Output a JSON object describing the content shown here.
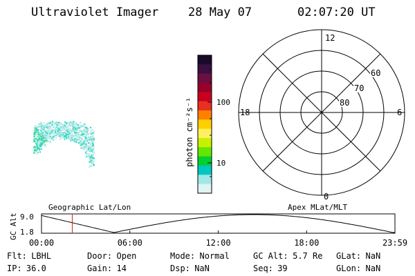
{
  "header": {
    "instrument": "Ultraviolet Imager",
    "date": "28 May 07",
    "time": "02:07:20 UT"
  },
  "colorbar": {
    "label": "photon cm⁻²s⁻¹",
    "ticks": [
      "100",
      "10"
    ],
    "colors": [
      "#1a0a2a",
      "#3a1040",
      "#6a1040",
      "#98002a",
      "#c80020",
      "#e83020",
      "#ff8000",
      "#ffd000",
      "#fff060",
      "#c8f000",
      "#60e800",
      "#00d030",
      "#00c8c0",
      "#a0e8e8",
      "#e0f4f4"
    ]
  },
  "polar_grid": {
    "mlt_labels": {
      "top": "12",
      "left": "18",
      "right": "6",
      "bottom": "0"
    },
    "lat_labels": [
      "60",
      "70",
      "80"
    ]
  },
  "altitude_plot": {
    "ylabel": "GC Alt",
    "yticks": [
      "9.0",
      "1.8"
    ],
    "left_title": "Geographic Lat/Lon",
    "right_title": "Apex MLat/MLT",
    "xticks": [
      "00:00",
      "06:00",
      "12:00",
      "18:00",
      "23:59"
    ],
    "current_time_fraction": 0.087
  },
  "status": {
    "row1": [
      {
        "key": "Flt:",
        "value": "LBHL"
      },
      {
        "key": "Door:",
        "value": "Open"
      },
      {
        "key": "Mode:",
        "value": "Normal"
      },
      {
        "key": "GC Alt:",
        "value": "5.7 Re"
      },
      {
        "key": "GLat:",
        "value": "NaN"
      }
    ],
    "row2": [
      {
        "key": "IP:",
        "value": "36.0"
      },
      {
        "key": "Gain:",
        "value": "14"
      },
      {
        "key": "Dsp:",
        "value": "NaN"
      },
      {
        "key": "Seq:",
        "value": "39"
      },
      {
        "key": "GLon:",
        "value": "NaN"
      }
    ]
  }
}
